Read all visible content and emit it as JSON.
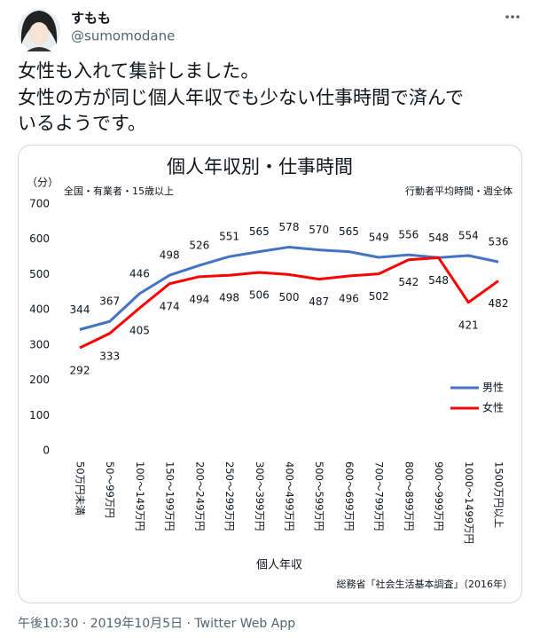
{
  "author": {
    "name": "すもも",
    "handle": "@sumomodane"
  },
  "tweet": {
    "lines": [
      "女性も入れて集計しました。",
      "女性の方が同じ個人年収でも少ない仕事時間で済んで",
      "いるようです。"
    ]
  },
  "chart_data": {
    "type": "line",
    "title": "個人年収別・仕事時間",
    "y_unit": "（分）",
    "subtitle_left": "全国・有業者・15歳以上",
    "subtitle_right": "行動者平均時間・週全体",
    "x_label": "個人年収",
    "source": "総務省「社会生活基本調査」（2016年）",
    "categories": [
      "50万円未満",
      "50～99万円",
      "100～149万円",
      "150～199万円",
      "200～249万円",
      "250～299万円",
      "300～399万円",
      "400～499万円",
      "500～599万円",
      "600～699万円",
      "700～799万円",
      "800～899万円",
      "900～999万円",
      "1000～1499万円",
      "1500万円以上"
    ],
    "series": [
      {
        "name": "男性",
        "color": "#4472c4",
        "values": [
          344,
          367,
          446,
          498,
          526,
          551,
          565,
          578,
          570,
          565,
          549,
          556,
          548,
          554,
          536
        ]
      },
      {
        "name": "女性",
        "color": "#ff0000",
        "values": [
          292,
          333,
          405,
          474,
          494,
          498,
          506,
          500,
          487,
          496,
          502,
          542,
          548,
          421,
          482
        ]
      }
    ],
    "ylim": [
      0,
      700
    ],
    "yticks": [
      0,
      100,
      200,
      300,
      400,
      500,
      600,
      700
    ],
    "grid": false
  },
  "footer": "午後10:30 · 2019年10月5日 · Twitter Web App"
}
